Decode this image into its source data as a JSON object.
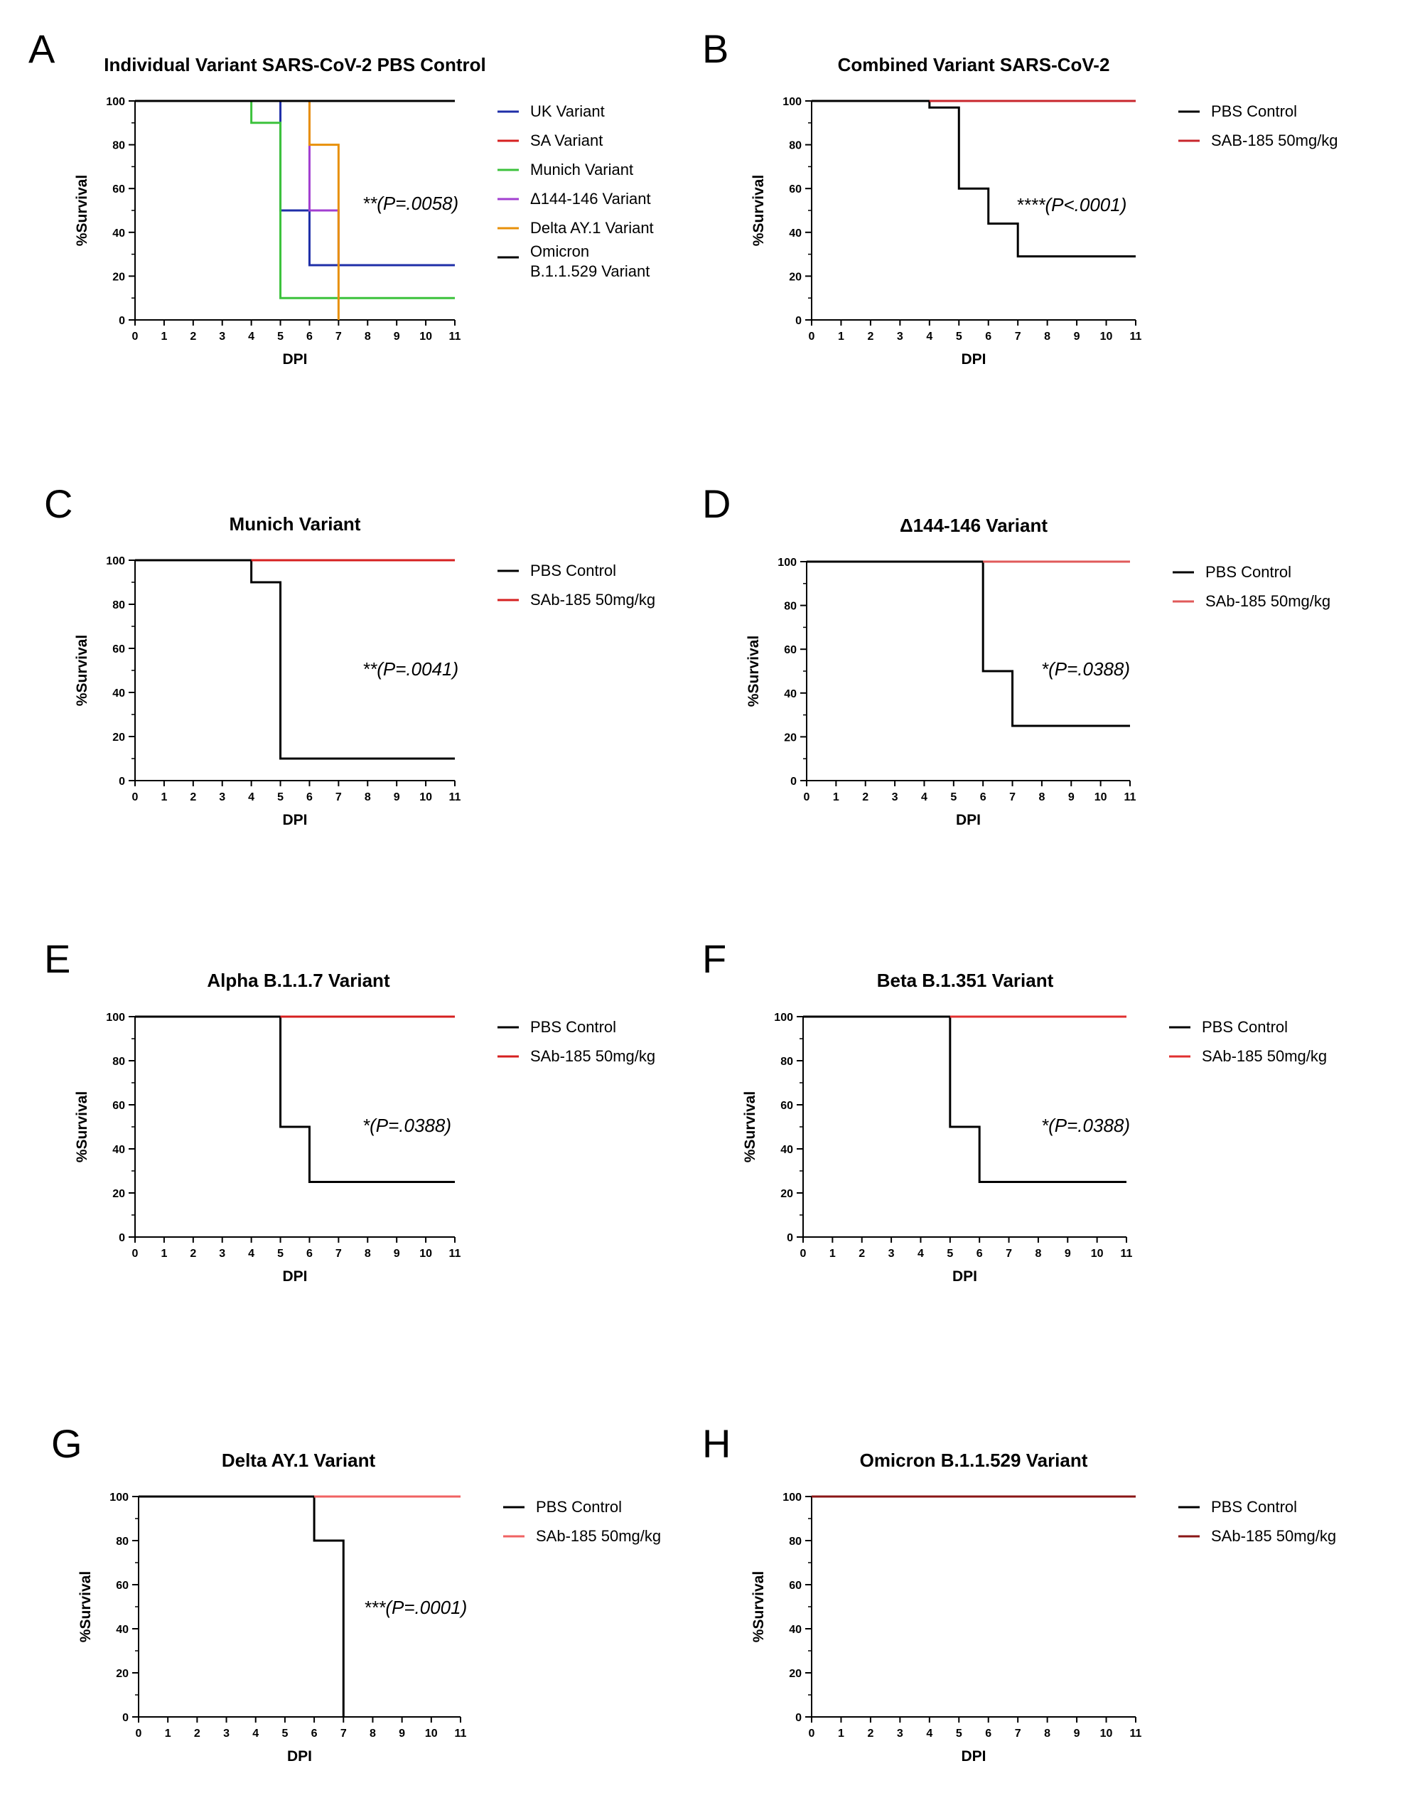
{
  "chart_data": [
    {
      "panel": "A",
      "type": "line",
      "step": true,
      "title": "Individual Variant SARS-CoV-2 PBS Control",
      "xlabel": "DPI",
      "ylabel": "%Survival",
      "xlim": [
        0,
        11
      ],
      "ylim": [
        0,
        100
      ],
      "xticks": [
        0,
        1,
        2,
        3,
        4,
        5,
        6,
        7,
        8,
        9,
        10,
        11
      ],
      "yticks": [
        0,
        20,
        40,
        60,
        80,
        100
      ],
      "legend_position": "right",
      "annotation": "**(P=.0058)",
      "series": [
        {
          "name": "UK Variant",
          "color": "#1f2fa8",
          "x": [
            0,
            5,
            6,
            11
          ],
          "y": [
            100,
            50,
            25,
            25
          ]
        },
        {
          "name": "SA Variant",
          "color": "#d62020",
          "x": [
            0,
            5,
            6,
            11
          ],
          "y": [
            100,
            100,
            100,
            100
          ]
        },
        {
          "name": "Munich Variant",
          "color": "#3cc23c",
          "x": [
            0,
            4,
            5,
            11
          ],
          "y": [
            100,
            90,
            10,
            10
          ]
        },
        {
          "name": "Δ144-146 Variant",
          "color": "#a23fd0",
          "x": [
            0,
            6,
            7,
            7
          ],
          "y": [
            100,
            50,
            25,
            25
          ]
        },
        {
          "name": "Delta AY.1 Variant",
          "color": "#e8900a",
          "x": [
            0,
            6,
            7,
            7
          ],
          "y": [
            100,
            80,
            0,
            0
          ]
        },
        {
          "name": "Omicron B.1.1.529 Variant",
          "color": "#000000",
          "x": [
            0,
            11
          ],
          "y": [
            100,
            100
          ]
        }
      ]
    },
    {
      "panel": "B",
      "type": "line",
      "step": true,
      "title": "Combined Variant SARS-CoV-2",
      "xlabel": "DPI",
      "ylabel": "%Survival",
      "xlim": [
        0,
        11
      ],
      "ylim": [
        0,
        100
      ],
      "xticks": [
        0,
        1,
        2,
        3,
        4,
        5,
        6,
        7,
        8,
        9,
        10,
        11
      ],
      "yticks": [
        0,
        20,
        40,
        60,
        80,
        100
      ],
      "legend_position": "right",
      "annotation": "****(P<.0001)",
      "series": [
        {
          "name": "PBS Control",
          "color": "#000000",
          "x": [
            0,
            4,
            5,
            6,
            7,
            11
          ],
          "y": [
            100,
            97,
            60,
            44,
            29,
            29
          ]
        },
        {
          "name": "SAB-185 50mg/kg",
          "color": "#c8262c",
          "x": [
            4,
            11
          ],
          "y": [
            100,
            100
          ]
        }
      ]
    },
    {
      "panel": "C",
      "type": "line",
      "step": true,
      "title": "Munich Variant",
      "xlabel": "DPI",
      "ylabel": "%Survival",
      "xlim": [
        0,
        11
      ],
      "ylim": [
        0,
        100
      ],
      "xticks": [
        0,
        1,
        2,
        3,
        4,
        5,
        6,
        7,
        8,
        9,
        10,
        11
      ],
      "yticks": [
        0,
        20,
        40,
        60,
        80,
        100
      ],
      "legend_position": "right",
      "annotation": "**(P=.0041)",
      "series": [
        {
          "name": "PBS Control",
          "color": "#000000",
          "x": [
            0,
            4,
            5,
            11
          ],
          "y": [
            100,
            90,
            10,
            10
          ]
        },
        {
          "name": "SAb-185 50mg/kg",
          "color": "#d62020",
          "x": [
            4,
            11
          ],
          "y": [
            100,
            100
          ]
        }
      ]
    },
    {
      "panel": "D",
      "type": "line",
      "step": true,
      "title": "Δ144-146 Variant",
      "xlabel": "DPI",
      "ylabel": "%Survival",
      "xlim": [
        0,
        11
      ],
      "ylim": [
        0,
        100
      ],
      "xticks": [
        0,
        1,
        2,
        3,
        4,
        5,
        6,
        7,
        8,
        9,
        10,
        11
      ],
      "yticks": [
        0,
        20,
        40,
        60,
        80,
        100
      ],
      "legend_position": "right",
      "annotation": "*(P=.0388)",
      "series": [
        {
          "name": "PBS Control",
          "color": "#000000",
          "x": [
            0,
            6,
            7,
            11
          ],
          "y": [
            100,
            50,
            25,
            25
          ]
        },
        {
          "name": "SAb-185 50mg/kg",
          "color": "#e05a5a",
          "x": [
            6,
            11
          ],
          "y": [
            100,
            100
          ]
        }
      ]
    },
    {
      "panel": "E",
      "type": "line",
      "step": true,
      "title": "Alpha B.1.1.7 Variant",
      "xlabel": "DPI",
      "ylabel": "%Survival",
      "xlim": [
        0,
        11
      ],
      "ylim": [
        0,
        100
      ],
      "xticks": [
        0,
        1,
        2,
        3,
        4,
        5,
        6,
        7,
        8,
        9,
        10,
        11
      ],
      "yticks": [
        0,
        20,
        40,
        60,
        80,
        100
      ],
      "legend_position": "right",
      "annotation": "*(P=.0388)",
      "series": [
        {
          "name": "PBS Control",
          "color": "#000000",
          "x": [
            0,
            5,
            6,
            11
          ],
          "y": [
            100,
            50,
            25,
            25
          ]
        },
        {
          "name": "SAb-185 50mg/kg",
          "color": "#d62020",
          "x": [
            5,
            11
          ],
          "y": [
            100,
            100
          ]
        }
      ]
    },
    {
      "panel": "F",
      "type": "line",
      "step": true,
      "title": "Beta B.1.351 Variant",
      "xlabel": "DPI",
      "ylabel": "%Survival",
      "xlim": [
        0,
        11
      ],
      "ylim": [
        0,
        100
      ],
      "xticks": [
        0,
        1,
        2,
        3,
        4,
        5,
        6,
        7,
        8,
        9,
        10,
        11
      ],
      "yticks": [
        0,
        20,
        40,
        60,
        80,
        100
      ],
      "legend_position": "right",
      "annotation": "*(P=.0388)",
      "series": [
        {
          "name": "PBS Control",
          "color": "#000000",
          "x": [
            0,
            5,
            6,
            11
          ],
          "y": [
            100,
            50,
            25,
            25
          ]
        },
        {
          "name": "SAb-185 50mg/kg",
          "color": "#e03030",
          "x": [
            5,
            11
          ],
          "y": [
            100,
            100
          ]
        }
      ]
    },
    {
      "panel": "G",
      "type": "line",
      "step": true,
      "title": "Delta AY.1 Variant",
      "xlabel": "DPI",
      "ylabel": "%Survival",
      "xlim": [
        0,
        11
      ],
      "ylim": [
        0,
        100
      ],
      "xticks": [
        0,
        1,
        2,
        3,
        4,
        5,
        6,
        7,
        8,
        9,
        10,
        11
      ],
      "yticks": [
        0,
        20,
        40,
        60,
        80,
        100
      ],
      "legend_position": "right",
      "annotation": "***(P=.0001)",
      "series": [
        {
          "name": "PBS Control",
          "color": "#000000",
          "x": [
            0,
            6,
            7,
            7
          ],
          "y": [
            100,
            80,
            0,
            0
          ]
        },
        {
          "name": "SAb-185 50mg/kg",
          "color": "#f06262",
          "x": [
            6,
            11
          ],
          "y": [
            100,
            100
          ]
        }
      ]
    },
    {
      "panel": "H",
      "type": "line",
      "step": true,
      "title": "Omicron B.1.1.529 Variant",
      "xlabel": "DPI",
      "ylabel": "%Survival",
      "xlim": [
        0,
        11
      ],
      "ylim": [
        0,
        100
      ],
      "xticks": [
        0,
        1,
        2,
        3,
        4,
        5,
        6,
        7,
        8,
        9,
        10,
        11
      ],
      "yticks": [
        0,
        20,
        40,
        60,
        80,
        100
      ],
      "legend_position": "right",
      "annotation": "",
      "series": [
        {
          "name": "PBS Control",
          "color": "#000000",
          "x": [
            0,
            11
          ],
          "y": [
            100,
            100
          ]
        },
        {
          "name": "SAb-185 50mg/kg",
          "color": "#8a1616",
          "x": [
            0,
            11
          ],
          "y": [
            100,
            100
          ]
        }
      ]
    }
  ]
}
